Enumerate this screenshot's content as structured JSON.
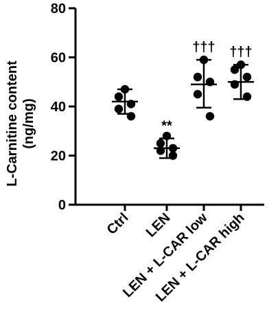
{
  "chart_data": {
    "type": "scatter",
    "ylabel_line1": "L-Carnitine content",
    "ylabel_line2": "(ng/mg)",
    "ylim": [
      0,
      80
    ],
    "yticks": [
      0,
      20,
      40,
      60,
      80
    ],
    "ytick_labels": [
      "0",
      "20",
      "40",
      "60",
      "80"
    ],
    "categories": [
      "Ctrl",
      "LEN",
      "LEN + L-CAR low",
      "LEN + L-CAR high"
    ],
    "groups": [
      {
        "name": "Ctrl",
        "points": [
          47,
          44,
          41,
          39,
          36
        ],
        "mean": 42,
        "sd_low": 37,
        "sd_high": 47,
        "annotation": ""
      },
      {
        "name": "LEN",
        "points": [
          28,
          25,
          23,
          22,
          20
        ],
        "mean": 23,
        "sd_low": 19,
        "sd_high": 27,
        "annotation": "**"
      },
      {
        "name": "LEN + L-CAR low",
        "points": [
          59,
          52,
          50,
          45,
          36
        ],
        "mean": 49,
        "sd_low": 39.5,
        "sd_high": 59,
        "annotation": "†††"
      },
      {
        "name": "LEN + L-CAR high",
        "points": [
          57,
          55,
          52,
          49,
          44
        ],
        "mean": 50,
        "sd_low": 43,
        "sd_high": 57,
        "annotation": "†††"
      }
    ],
    "marker_color": "#000000",
    "grid": false
  }
}
